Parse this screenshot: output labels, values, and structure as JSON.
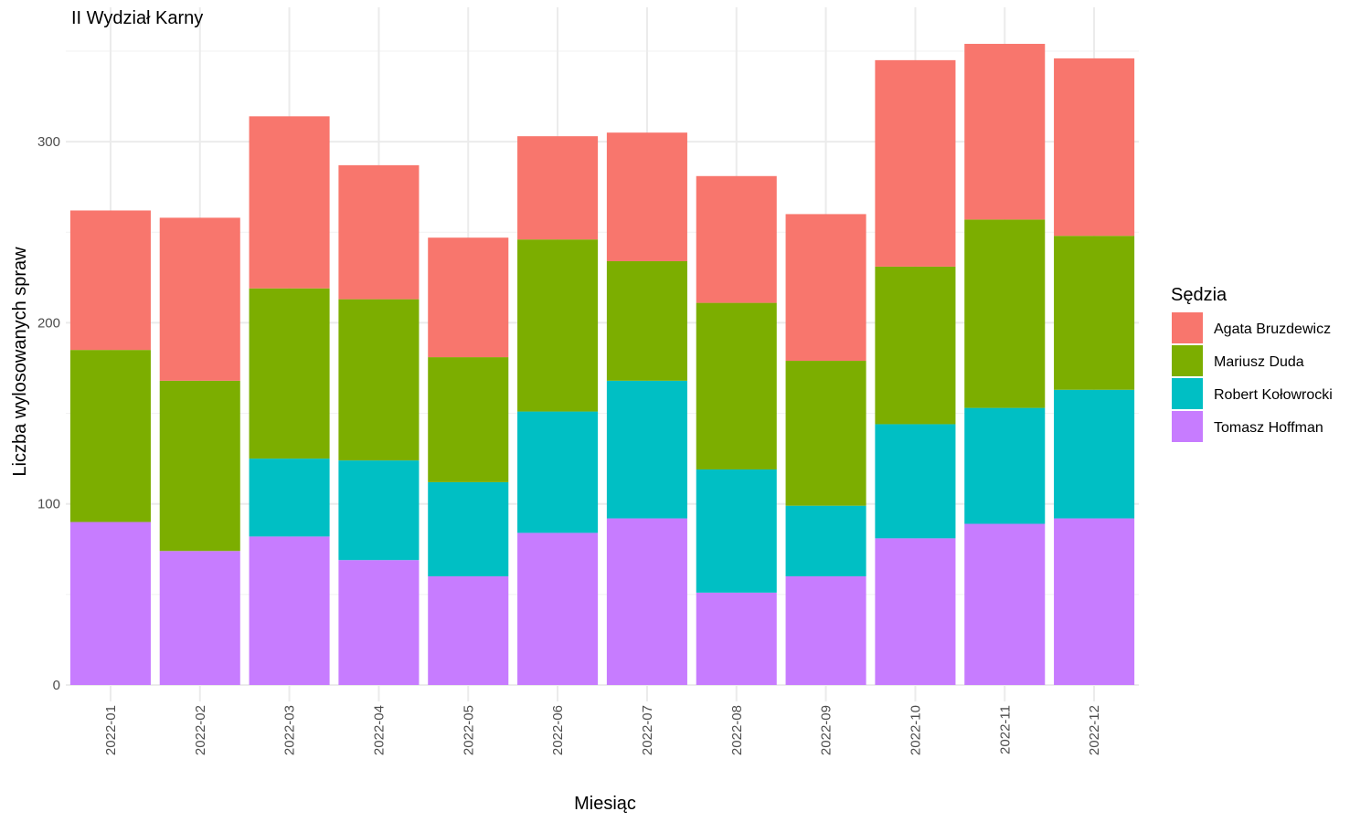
{
  "chart_data": {
    "type": "bar",
    "stacked": true,
    "title": "II Wydział Karny",
    "xlabel": "Miesiąc",
    "ylabel": "Liczba wylosowanych spraw",
    "ylim": [
      0,
      363
    ],
    "y_ticks": [
      0,
      100,
      200,
      300
    ],
    "y_tick_labels": [
      "0",
      "100",
      "200",
      "300"
    ],
    "grid": true,
    "legend_title": "Sędzia",
    "legend_position": "right",
    "categories": [
      "2022-01",
      "2022-02",
      "2022-03",
      "2022-04",
      "2022-05",
      "2022-06",
      "2022-07",
      "2022-08",
      "2022-09",
      "2022-10",
      "2022-11",
      "2022-12"
    ],
    "series": [
      {
        "name": "Agata Bruzdewicz",
        "color": "#F8766D",
        "values": [
          77,
          90,
          95,
          74,
          66,
          57,
          71,
          70,
          81,
          114,
          97,
          98
        ]
      },
      {
        "name": "Mariusz Duda",
        "color": "#7CAE00",
        "values": [
          95,
          94,
          94,
          89,
          69,
          95,
          66,
          92,
          80,
          87,
          104,
          85
        ]
      },
      {
        "name": "Robert Kołowrocki",
        "color": "#00BFC4",
        "values": [
          0,
          0,
          43,
          55,
          52,
          67,
          76,
          68,
          39,
          63,
          64,
          71
        ]
      },
      {
        "name": "Tomasz Hoffman",
        "color": "#C77CFF",
        "values": [
          90,
          74,
          82,
          69,
          60,
          84,
          92,
          51,
          60,
          81,
          89,
          92
        ]
      }
    ],
    "stack_order": [
      "Tomasz Hoffman",
      "Robert Kołowrocki",
      "Mariusz Duda",
      "Agata Bruzdewicz"
    ]
  }
}
